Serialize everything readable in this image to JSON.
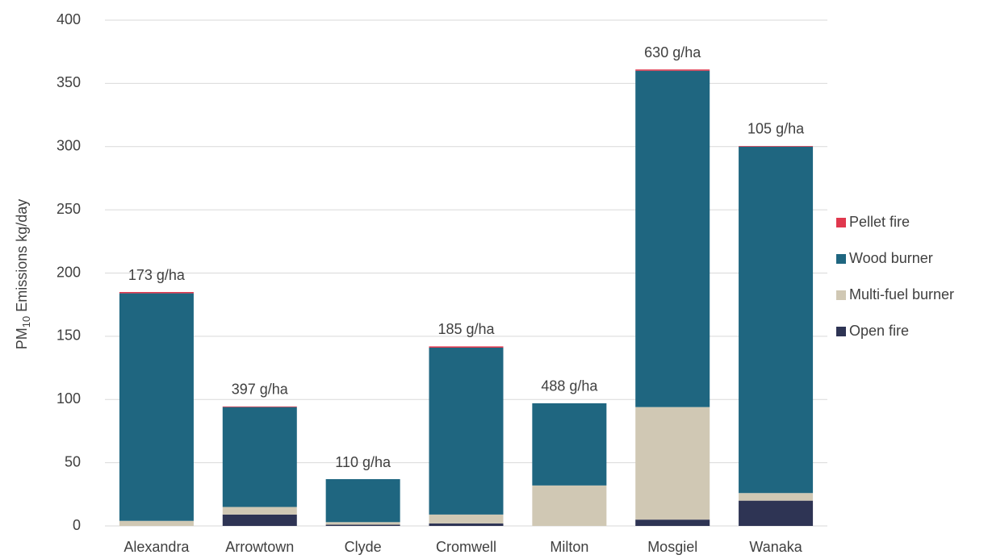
{
  "chart_data": {
    "type": "stacked-bar",
    "y_label": {
      "main": "PM",
      "sub": "10",
      "rest": "Emissions kg/day"
    },
    "categories": [
      "Alexandra",
      "Arrowtown",
      "Clyde",
      "Cromwell",
      "Milton",
      "Mosgiel",
      "Wanaka"
    ],
    "series": [
      {
        "name": "Open fire",
        "color": "#2e3454",
        "values": [
          0,
          9,
          1,
          2,
          0,
          5,
          20
        ]
      },
      {
        "name": "Multi-fuel burner",
        "color": "#d0c8b4",
        "values": [
          4,
          6,
          2,
          7,
          32,
          89,
          6
        ]
      },
      {
        "name": "Wood burner",
        "color": "#1f6680",
        "values": [
          180,
          79,
          34,
          132,
          65,
          266,
          274
        ]
      },
      {
        "name": "Pellet fire",
        "color": "#e0384e",
        "values": [
          1,
          0.5,
          0,
          1,
          0,
          1,
          0.5
        ]
      }
    ],
    "annotations": [
      "173 g/ha",
      "397 g/ha",
      "110 g/ha",
      "185 g/ha",
      "488 g/ha",
      "630 g/ha",
      "105 g/ha"
    ],
    "ylim": [
      0,
      400
    ],
    "yticks": [
      0,
      50,
      100,
      150,
      200,
      250,
      300,
      350,
      400
    ],
    "grid": true,
    "legend": "right"
  }
}
